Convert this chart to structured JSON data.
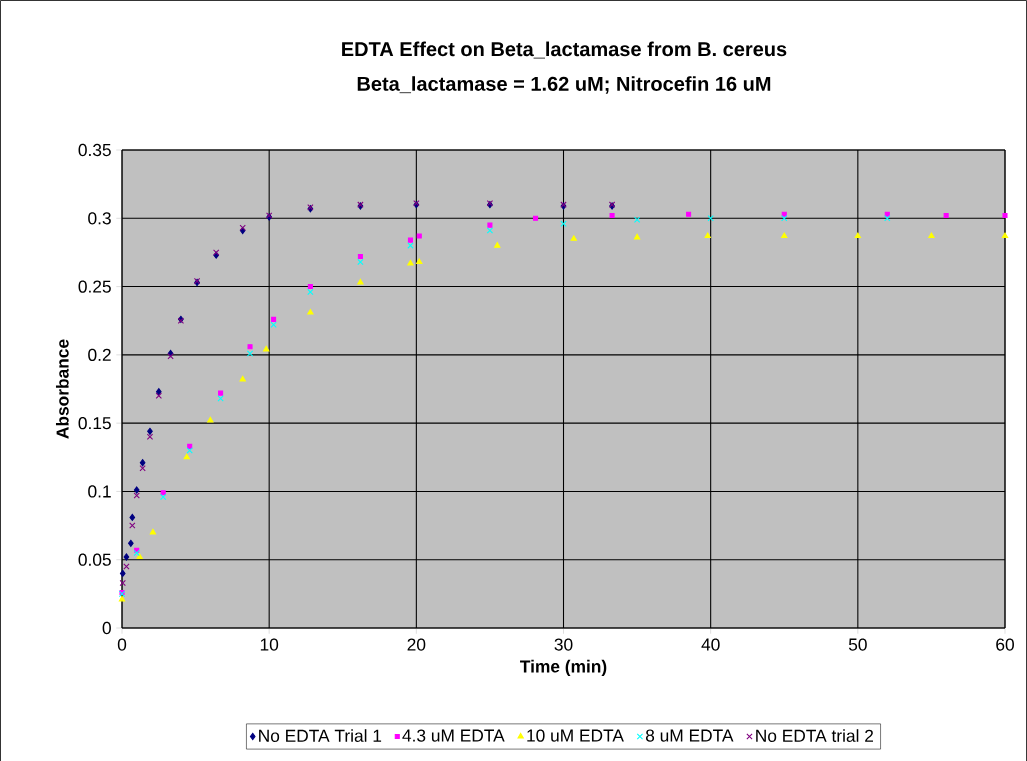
{
  "chart_data": {
    "type": "scatter",
    "title": "EDTA Effect on Beta_lactamase from B. cereus",
    "subtitle": "Beta_lactamase = 1.62 uM; Nitrocefin 16 uM",
    "xlabel": "Time (min)",
    "ylabel": "Absorbance",
    "xlim": [
      0,
      60
    ],
    "xticks": [
      0,
      10,
      20,
      30,
      40,
      50,
      60
    ],
    "ylim": [
      0,
      0.35
    ],
    "yticks": [
      0,
      0.05,
      0.1,
      0.15,
      0.2,
      0.25,
      0.3,
      0.35
    ],
    "grid": true,
    "legend": "bottom",
    "series": [
      {
        "name": "No EDTA Trial 1",
        "color": "#000080",
        "marker": "diamond",
        "x": [
          0.05,
          0.3,
          0.6,
          0.7,
          1.0,
          1.4,
          1.9,
          2.5,
          3.3,
          4.0,
          5.1,
          6.4,
          8.2,
          10.0,
          12.8,
          16.2,
          20,
          25,
          30,
          33.3
        ],
        "values": [
          0.04,
          0.052,
          0.062,
          0.081,
          0.101,
          0.121,
          0.144,
          0.173,
          0.201,
          0.226,
          0.253,
          0.273,
          0.291,
          0.301,
          0.307,
          0.309,
          0.31,
          0.31,
          0.309,
          0.309
        ]
      },
      {
        "name": "4.3 uM EDTA",
        "color": "#ff00ff",
        "marker": "square",
        "x": [
          0,
          1.0,
          2.8,
          4.6,
          6.7,
          8.7,
          10.3,
          12.8,
          16.2,
          19.6,
          20.2,
          25,
          28.1,
          33.3,
          38.5,
          45,
          52,
          56,
          60
        ],
        "values": [
          0.026,
          0.057,
          0.099,
          0.133,
          0.172,
          0.206,
          0.226,
          0.25,
          0.272,
          0.284,
          0.287,
          0.295,
          0.3,
          0.302,
          0.303,
          0.303,
          0.303,
          0.302,
          0.302
        ]
      },
      {
        "name": "10 uM EDTA",
        "color": "#ffff00",
        "marker": "triangle",
        "x": [
          0,
          1.2,
          2.1,
          4.4,
          6.0,
          8.2,
          9.8,
          12.8,
          16.2,
          19.6,
          20.2,
          25.5,
          30.7,
          35,
          39.8,
          45,
          50,
          55,
          60
        ],
        "values": [
          0.021,
          0.052,
          0.07,
          0.125,
          0.152,
          0.182,
          0.204,
          0.231,
          0.253,
          0.267,
          0.268,
          0.28,
          0.285,
          0.286,
          0.287,
          0.287,
          0.287,
          0.287,
          0.287
        ]
      },
      {
        "name": "8 uM EDTA",
        "color": "#00ffff",
        "marker": "cross",
        "x": [
          0,
          1.0,
          2.8,
          4.6,
          6.7,
          8.7,
          10.3,
          12.8,
          16.2,
          19.6,
          25,
          30,
          35,
          40,
          45,
          52
        ],
        "values": [
          0.025,
          0.055,
          0.096,
          0.13,
          0.168,
          0.201,
          0.222,
          0.246,
          0.268,
          0.28,
          0.291,
          0.296,
          0.299,
          0.3,
          0.3,
          0.3
        ]
      },
      {
        "name": "No EDTA trial 2",
        "color": "#800080",
        "marker": "cross",
        "x": [
          0.05,
          0.3,
          0.7,
          1.0,
          1.4,
          1.9,
          2.5,
          3.3,
          4.0,
          5.1,
          6.4,
          8.2,
          10.0,
          12.8,
          16.2,
          20,
          25,
          30,
          33.3
        ],
        "values": [
          0.033,
          0.045,
          0.075,
          0.097,
          0.117,
          0.14,
          0.17,
          0.199,
          0.225,
          0.254,
          0.275,
          0.293,
          0.302,
          0.308,
          0.31,
          0.311,
          0.311,
          0.31,
          0.31
        ]
      }
    ]
  }
}
